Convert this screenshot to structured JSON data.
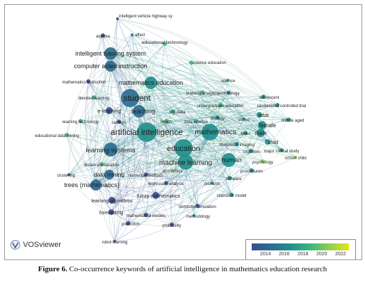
{
  "brand": {
    "name": "VOSviewer",
    "icon": "vosviewer-logo-icon"
  },
  "legend": {
    "ticks": [
      "2014",
      "2016",
      "2018",
      "2020",
      "2022"
    ],
    "colors": [
      "#3b4d8f",
      "#2c6d8e",
      "#21908d",
      "#3bb77a",
      "#8fd14f",
      "#e3e418"
    ]
  },
  "caption": {
    "label": "Figure 6.",
    "text": " Co-occurrence keywords of artificial intelligence in mathematics education research"
  },
  "nodes": [
    {
      "t": "intelligent vehicle highway sy",
      "c": "#3b4d8f",
      "r": 2,
      "s": 6
    },
    {
      "t": "algebra",
      "c": "#3b4d8f",
      "r": 3,
      "s": 6
    },
    {
      "t": "affect",
      "c": "#2c6d8e",
      "r": 2,
      "s": 6
    },
    {
      "t": "educational technology",
      "c": "#3bb77a",
      "r": 3,
      "s": 6.5
    },
    {
      "t": "intelligent tutoring system",
      "c": "#2c6d8e",
      "r": 9,
      "s": 9
    },
    {
      "t": "computer aided instruction",
      "c": "#2c6d8e",
      "r": 8,
      "s": 9
    },
    {
      "t": "science education",
      "c": "#3bb77a",
      "r": 3,
      "s": 6
    },
    {
      "t": "mathematics education",
      "c": "#21908d",
      "r": 9,
      "s": 9
    },
    {
      "t": "mathematics instruction",
      "c": "#3b4d8f",
      "r": 3,
      "s": 6
    },
    {
      "t": "science",
      "c": "#3bb77a",
      "r": 2,
      "s": 6
    },
    {
      "t": "blended learning",
      "c": "#3bb77a",
      "r": 3,
      "s": 6
    },
    {
      "t": "student",
      "c": "#2c6d8e",
      "r": 13,
      "s": 12
    },
    {
      "t": "learning analytics",
      "c": "#3bb77a",
      "r": 3,
      "s": 6
    },
    {
      "t": "technology",
      "c": "#21908d",
      "r": 3,
      "s": 6.5
    },
    {
      "t": "adolescent",
      "c": "#21908d",
      "r": 3,
      "s": 6
    },
    {
      "t": "e-learning",
      "c": "#3b4d8f",
      "r": 5,
      "s": 7.5
    },
    {
      "t": "teaching",
      "c": "#2c6d8e",
      "r": 9,
      "s": 9
    },
    {
      "t": "undergraduate education",
      "c": "#3bb77a",
      "r": 3,
      "s": 6
    },
    {
      "t": "randomized controlled trial",
      "c": "#21908d",
      "r": 3,
      "s": 6
    },
    {
      "t": "learning technology",
      "c": "#3bb77a",
      "r": 3,
      "s": 6
    },
    {
      "t": "big data",
      "c": "#3bb77a",
      "r": 3,
      "s": 6.5
    },
    {
      "t": "adult",
      "c": "#21908d",
      "r": 4,
      "s": 7
    },
    {
      "t": "surveys",
      "c": "#3b4d8f",
      "r": 3,
      "s": 6
    },
    {
      "t": "health",
      "c": "#3bb77a",
      "r": 3,
      "s": 6
    },
    {
      "t": "data science",
      "c": "#3bb77a",
      "r": 3,
      "s": 6
    },
    {
      "t": "biology",
      "c": "#21908d",
      "r": 3,
      "s": 6.5
    },
    {
      "t": "school",
      "c": "#21908d",
      "r": 2,
      "s": 6
    },
    {
      "t": "middle aged",
      "c": "#21908d",
      "r": 3,
      "s": 6
    },
    {
      "t": "artificial intelligence",
      "c": "#21908d",
      "r": 14,
      "s": 12
    },
    {
      "t": "mathematics",
      "c": "#21908d",
      "r": 12,
      "s": 10.5
    },
    {
      "t": "female",
      "c": "#21908d",
      "r": 6,
      "s": 8
    },
    {
      "t": "educational data mining",
      "c": "#3bb77a",
      "r": 3,
      "s": 6
    },
    {
      "t": "brain",
      "c": "#21908d",
      "r": 3,
      "s": 6
    },
    {
      "t": "male",
      "c": "#21908d",
      "r": 6,
      "s": 8
    },
    {
      "t": "child",
      "c": "#21908d",
      "r": 4,
      "s": 7
    },
    {
      "t": "diagnostic imaging",
      "c": "#21908d",
      "r": 3,
      "s": 6
    },
    {
      "t": "major clinical study",
      "c": "#21908d",
      "r": 3,
      "s": 6
    },
    {
      "t": "learning systems",
      "c": "#2c6d8e",
      "r": 10,
      "s": 9.5
    },
    {
      "t": "education",
      "c": "#21908d",
      "r": 13,
      "s": 11
    },
    {
      "t": "cognition",
      "c": "#21908d",
      "r": 3,
      "s": 6
    },
    {
      "t": "human",
      "c": "#21908d",
      "r": 10,
      "s": 9.5
    },
    {
      "t": "psychology",
      "c": "#8fd14f",
      "r": 3,
      "s": 6
    },
    {
      "t": "school child",
      "c": "#8fd14f",
      "r": 2,
      "s": 6
    },
    {
      "t": "machine learning",
      "c": "#21908d",
      "r": 11,
      "s": 10
    },
    {
      "t": "distance education",
      "c": "#3bb77a",
      "r": 3,
      "s": 6
    },
    {
      "t": "economics",
      "c": "#8fd14f",
      "r": 2,
      "s": 6
    },
    {
      "t": "procedures",
      "c": "#21908d",
      "r": 3,
      "s": 6.5
    },
    {
      "t": "data mining",
      "c": "#2c6d8e",
      "r": 7,
      "s": 8.5
    },
    {
      "t": "numerical methods",
      "c": "#3b4d8f",
      "r": 3,
      "s": 6
    },
    {
      "t": "clustering",
      "c": "#2c6d8e",
      "r": 2,
      "s": 6
    },
    {
      "t": "software",
      "c": "#21908d",
      "r": 3,
      "s": 6
    },
    {
      "t": "regression analysis",
      "c": "#2c6d8e",
      "r": 3,
      "s": 6
    },
    {
      "t": "research",
      "c": "#21908d",
      "r": 2,
      "s": 6
    },
    {
      "t": "trees (mathematics)",
      "c": "#2c6d8e",
      "r": 8,
      "s": 9
    },
    {
      "t": "fuzzy mathematics",
      "c": "#3b4d8f",
      "r": 5,
      "s": 7.5
    },
    {
      "t": "statistical model",
      "c": "#21908d",
      "r": 3,
      "s": 6
    },
    {
      "t": "learning algorithms",
      "c": "#3b4d8f",
      "r": 5,
      "s": 7
    },
    {
      "t": "computer simulation",
      "c": "#3b4d8f",
      "r": 3,
      "s": 6
    },
    {
      "t": "forecasting",
      "c": "#3b4d8f",
      "r": 4,
      "s": 7
    },
    {
      "t": "mathematical models",
      "c": "#3b4d8f",
      "r": 3,
      "s": 6
    },
    {
      "t": "methodology",
      "c": "#21908d",
      "r": 2,
      "s": 6
    },
    {
      "t": "prediction",
      "c": "#3b4d8f",
      "r": 3,
      "s": 6
    },
    {
      "t": "probability",
      "c": "#3b4d8f",
      "r": 3,
      "s": 6
    },
    {
      "t": "robot learning",
      "c": "#3b4d8f",
      "r": 2,
      "s": 6
    }
  ]
}
